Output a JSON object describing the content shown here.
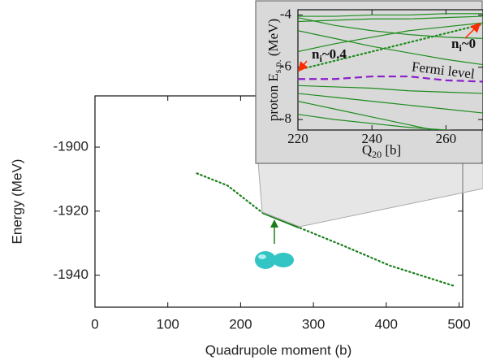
{
  "chart_data": [
    {
      "type": "line",
      "x_label": "Quadrupole moment (b)",
      "y_label": "Energy (MeV)",
      "xlim": [
        0,
        505
      ],
      "ylim": [
        -1950,
        -1884
      ],
      "xticks": [
        0,
        100,
        200,
        300,
        400,
        500
      ],
      "yticks": [
        -1900,
        -1920,
        -1940
      ],
      "series": [
        {
          "color": "#1a7f1a",
          "style": "dotted",
          "x": [
            140,
            182,
            230,
            280,
            338,
            405,
            495
          ],
          "values": [
            -1908.2,
            -1912,
            -1920.5,
            -1925.1,
            -1930.5,
            -1937,
            -1943.5
          ]
        },
        {
          "color": "#1a7f1a",
          "style": "solid",
          "x": [
            230,
            280
          ],
          "values": [
            -1920.5,
            -1925.1
          ]
        }
      ]
    },
    {
      "type": "line",
      "x_label": [
        "Q",
        "20",
        " [b]"
      ],
      "y_label": [
        "proton E",
        "s.p.",
        " (MeV)"
      ],
      "xlim": [
        220,
        270
      ],
      "ylim": [
        -8.4,
        -3.8
      ],
      "xticks": [
        220,
        240,
        260
      ],
      "yticks": [
        -4,
        -6,
        -8
      ],
      "x": [
        220,
        230,
        240,
        250,
        260,
        270
      ],
      "series": [
        {
          "color": "#1e8c1e",
          "style": "solid",
          "values": [
            -4.05,
            -4.05,
            -4.0,
            -4.0,
            -3.95,
            -3.95
          ]
        },
        {
          "color": "#1e8c1e",
          "style": "solid",
          "values": [
            -4.25,
            -4.2,
            -4.15,
            -4.15,
            -4.1,
            -4.05
          ]
        },
        {
          "color": "#1e8c1e",
          "style": "solid",
          "values": [
            -4.1,
            -4.4,
            -4.6,
            -4.75,
            -4.85,
            -4.9
          ]
        },
        {
          "color": "#1e8c1e",
          "style": "solid",
          "values": [
            -5.4,
            -5.1,
            -4.85,
            -4.6,
            -4.45,
            -4.3
          ]
        },
        {
          "color": "#1e8c1e",
          "style": "solid",
          "values": [
            -4.6,
            -4.9,
            -5.2,
            -5.45,
            -5.7,
            -5.9
          ]
        },
        {
          "color": "#1e8c1e",
          "style": "solid",
          "values": [
            -6.7,
            -6.75,
            -6.8,
            -6.9,
            -6.95,
            -7.0
          ]
        },
        {
          "color": "#1e8c1e",
          "style": "solid",
          "values": [
            -7.0,
            -7.15,
            -7.3,
            -7.45,
            -7.6,
            -7.75
          ]
        },
        {
          "color": "#1e8c1e",
          "style": "solid",
          "values": [
            -7.3,
            -7.6,
            -7.9,
            -8.2,
            -8.5,
            -8.8
          ]
        },
        {
          "color": "#1e8c1e",
          "style": "solid",
          "values": [
            -7.8,
            -8.0,
            -8.15,
            -8.3,
            -8.4,
            -8.5
          ]
        },
        {
          "color": "#1e8c1e",
          "style": "dotted",
          "values": [
            -6.1,
            -5.75,
            -5.4,
            -5.05,
            -4.7,
            -4.35
          ]
        },
        {
          "name": "Fermi level",
          "color": "#8b1fc9",
          "style": "dashed",
          "values": [
            -6.45,
            -6.45,
            -6.35,
            -6.35,
            -6.5,
            -6.55
          ]
        }
      ],
      "annotations": [
        {
          "text": [
            "n",
            "i",
            "~0.4"
          ],
          "color": "#ff2a00"
        },
        {
          "text": [
            "n",
            "i",
            "~0"
          ],
          "color": "#ff2a00"
        }
      ]
    }
  ]
}
